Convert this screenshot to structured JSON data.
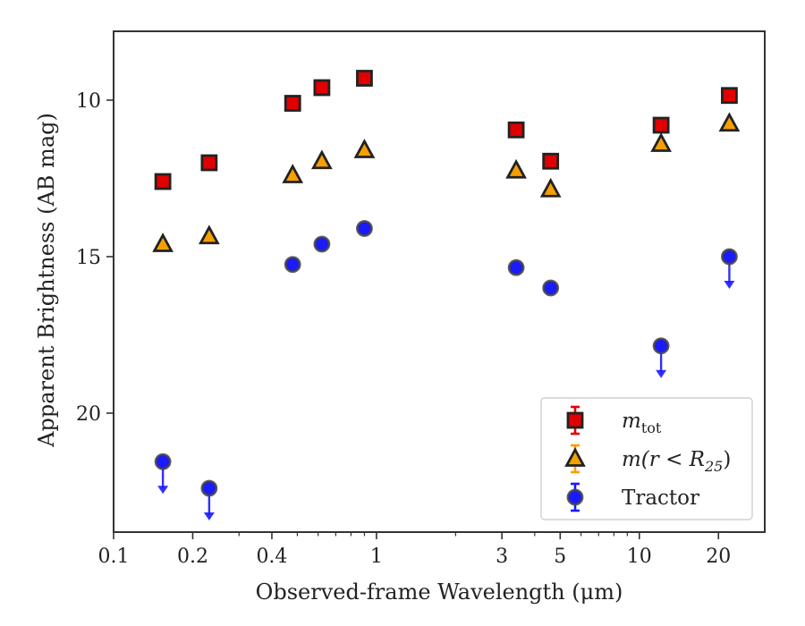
{
  "chart_data": {
    "type": "scatter",
    "xlabel": "Observed-frame Wavelength (μm)",
    "ylabel": "Apparent Brightness (AB mag)",
    "x_scale": "log",
    "xlim": [
      0.1,
      30
    ],
    "ylim": [
      23.8,
      7.8
    ],
    "y_inverted": true,
    "x_ticks": [
      0.1,
      0.2,
      0.4,
      1,
      3,
      5,
      10,
      20
    ],
    "x_tick_labels": [
      "0.1",
      "0.2",
      "0.4",
      "1",
      "3",
      "5",
      "10",
      "20"
    ],
    "y_ticks": [
      10,
      15,
      20
    ],
    "y_tick_labels": [
      "10",
      "15",
      "20"
    ],
    "grid": false,
    "legend_position": "lower-right",
    "series": [
      {
        "name": "m_tot",
        "legend_main": "m",
        "legend_sub": "tot",
        "marker": "square",
        "color": "#e00000",
        "points": [
          {
            "x": 0.154,
            "y": 12.6
          },
          {
            "x": 0.231,
            "y": 12.0
          },
          {
            "x": 0.48,
            "y": 10.1
          },
          {
            "x": 0.62,
            "y": 9.6
          },
          {
            "x": 0.9,
            "y": 9.3
          },
          {
            "x": 3.4,
            "y": 10.95
          },
          {
            "x": 4.6,
            "y": 11.95
          },
          {
            "x": 12.1,
            "y": 10.8
          },
          {
            "x": 22.0,
            "y": 9.85
          }
        ]
      },
      {
        "name": "m(r < R25)",
        "legend_main": "m(r < R",
        "legend_sub": "25",
        "legend_tail": ")",
        "marker": "triangle",
        "color": "#f5a000",
        "points": [
          {
            "x": 0.154,
            "y": 14.6
          },
          {
            "x": 0.231,
            "y": 14.35
          },
          {
            "x": 0.48,
            "y": 12.4
          },
          {
            "x": 0.62,
            "y": 11.95
          },
          {
            "x": 0.9,
            "y": 11.6
          },
          {
            "x": 3.4,
            "y": 12.25
          },
          {
            "x": 4.6,
            "y": 12.85
          },
          {
            "x": 12.1,
            "y": 11.4
          },
          {
            "x": 22.0,
            "y": 10.75
          }
        ]
      },
      {
        "name": "Tractor",
        "legend_main": "Tractor",
        "marker": "circle",
        "color": "#1a1aff",
        "points": [
          {
            "x": 0.154,
            "y": 21.55,
            "upper_limit": true
          },
          {
            "x": 0.231,
            "y": 22.4,
            "upper_limit": true
          },
          {
            "x": 0.48,
            "y": 15.25
          },
          {
            "x": 0.62,
            "y": 14.6
          },
          {
            "x": 0.9,
            "y": 14.1
          },
          {
            "x": 3.4,
            "y": 15.35
          },
          {
            "x": 4.6,
            "y": 16.0
          },
          {
            "x": 12.1,
            "y": 17.85,
            "upper_limit": true
          },
          {
            "x": 22.0,
            "y": 15.0,
            "upper_limit": true
          }
        ]
      }
    ]
  }
}
